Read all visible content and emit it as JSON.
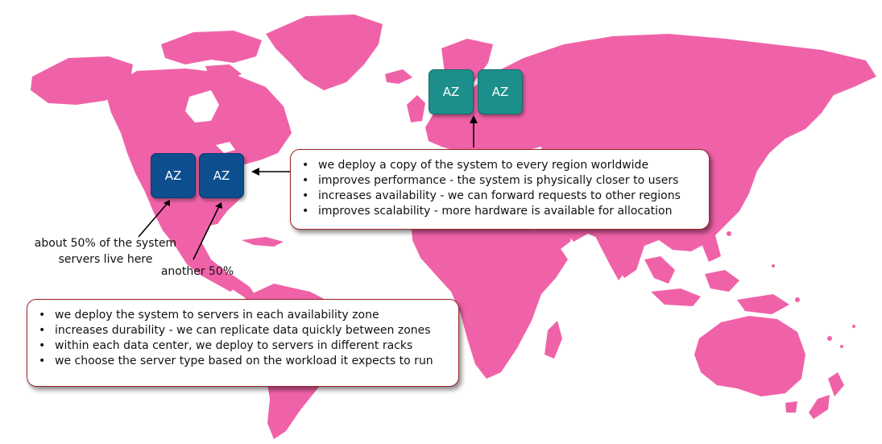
{
  "map": {
    "land_color": "#f062a8",
    "background": "#ffffff"
  },
  "regions": [
    {
      "id": "north-america",
      "zones": [
        "AZ",
        "AZ"
      ],
      "color": "#0d4e8f"
    },
    {
      "id": "asia",
      "zones": [
        "AZ",
        "AZ"
      ],
      "color": "#1c8f8c"
    }
  ],
  "region_callout": {
    "items": [
      "we deploy a copy of the system to every region worldwide",
      "improves performance - the system is physically closer to users",
      "increases availability - we can forward requests to other regions",
      "improves scalability - more hardware is available for allocation"
    ]
  },
  "zone_callout": {
    "items": [
      "we deploy the system to servers in each availability zone",
      "increases durability - we can replicate data quickly between zones",
      "within each data center, we deploy to servers in different racks",
      "we choose the server type based on the workload it expects to run"
    ]
  },
  "notes": {
    "first_line1": "about 50% of the system",
    "first_line2": "servers live here",
    "second": "another 50%"
  },
  "accent": {
    "callout_border": "#9b2226",
    "arrow": "#000000"
  }
}
